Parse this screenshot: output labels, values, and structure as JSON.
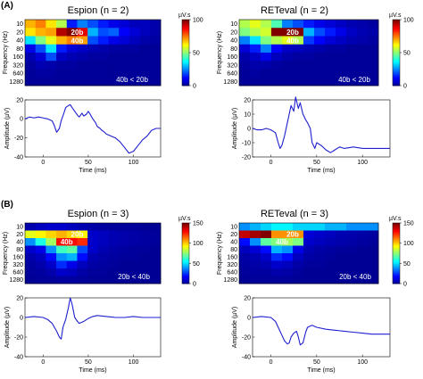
{
  "panel_labels": [
    "(A)",
    "(B)"
  ],
  "colormap": [
    "#00008f",
    "#0000ff",
    "#0080ff",
    "#00ffff",
    "#80ff80",
    "#ffff00",
    "#ff8000",
    "#ff0000",
    "#800000"
  ],
  "chart_data": [
    {
      "type": "heatmap",
      "title": "Espion (n = 2)",
      "ylabel": "Frequency (Hz)",
      "y_categories": [
        "10",
        "20",
        "40",
        "80",
        "160",
        "320",
        "640",
        "1280"
      ],
      "colorbar": {
        "label": "µV.s",
        "range": [
          0,
          100
        ],
        "ticks": [
          0,
          50,
          100
        ]
      },
      "block_labels": [
        "20b",
        "40b"
      ],
      "annotation": "40b < 20b",
      "values": [
        [
          70,
          75,
          65,
          55,
          15,
          25,
          20,
          15,
          10,
          8,
          5,
          5,
          3
        ],
        [
          65,
          70,
          72,
          95,
          100,
          90,
          30,
          20,
          22,
          12,
          8,
          5,
          3
        ],
        [
          35,
          50,
          60,
          70,
          75,
          72,
          20,
          15,
          10,
          8,
          5,
          3,
          2
        ],
        [
          10,
          20,
          35,
          15,
          8,
          6,
          4,
          3,
          2,
          2,
          2,
          1,
          1
        ],
        [
          4,
          8,
          20,
          6,
          4,
          3,
          2,
          2,
          1,
          1,
          1,
          1,
          1
        ],
        [
          2,
          4,
          3,
          2,
          2,
          1,
          1,
          1,
          1,
          1,
          1,
          1,
          1
        ],
        [
          1,
          2,
          2,
          1,
          1,
          1,
          1,
          1,
          1,
          1,
          1,
          1,
          1
        ],
        [
          1,
          1,
          1,
          1,
          1,
          1,
          1,
          1,
          1,
          1,
          1,
          1,
          1
        ]
      ]
    },
    {
      "type": "heatmap",
      "title": "RETeval (n = 2)",
      "ylabel": "Frequency (Hz)",
      "y_categories": [
        "10",
        "20",
        "40",
        "80",
        "160",
        "320",
        "640",
        "1280"
      ],
      "colorbar": {
        "label": "µV.s",
        "range": [
          0,
          100
        ],
        "ticks": [
          0,
          50,
          100
        ]
      },
      "block_labels": [
        "20b",
        "40b"
      ],
      "annotation": "40b < 20b",
      "values": [
        [
          55,
          60,
          55,
          45,
          25,
          20,
          15,
          10,
          8,
          6,
          4,
          3,
          2
        ],
        [
          50,
          55,
          58,
          100,
          100,
          100,
          30,
          20,
          15,
          10,
          6,
          4,
          3
        ],
        [
          25,
          35,
          50,
          55,
          60,
          55,
          18,
          12,
          8,
          6,
          4,
          3,
          2
        ],
        [
          8,
          15,
          25,
          12,
          6,
          5,
          4,
          3,
          2,
          2,
          1,
          1,
          1
        ],
        [
          3,
          6,
          10,
          5,
          3,
          2,
          2,
          1,
          1,
          1,
          1,
          1,
          1
        ],
        [
          2,
          3,
          3,
          2,
          1,
          1,
          1,
          1,
          1,
          1,
          1,
          1,
          1
        ],
        [
          1,
          2,
          1,
          1,
          1,
          1,
          1,
          1,
          1,
          1,
          1,
          1,
          1
        ],
        [
          1,
          1,
          1,
          1,
          1,
          1,
          1,
          1,
          1,
          1,
          1,
          1,
          1
        ]
      ]
    },
    {
      "type": "line",
      "xlabel": "Time (ms)",
      "ylabel": "Amplitude (µV)",
      "xlim": [
        -20,
        130
      ],
      "ylim": [
        -40,
        20
      ],
      "xticks": [
        0,
        50,
        100
      ],
      "yticks": [
        -40,
        -20,
        0,
        20
      ],
      "series": [
        {
          "x": [
            -20,
            -15,
            -10,
            -5,
            0,
            5,
            10,
            12,
            15,
            18,
            20,
            23,
            25,
            28,
            30,
            32,
            35,
            38,
            40,
            43,
            45,
            48,
            50,
            52,
            55,
            58,
            60,
            63,
            65,
            68,
            70,
            75,
            80,
            85,
            90,
            95,
            100,
            105,
            110,
            115,
            120,
            125,
            130
          ],
          "y": [
            0,
            2,
            1,
            2,
            1,
            0,
            -2,
            -6,
            -14,
            -10,
            -2,
            6,
            12,
            14,
            15,
            12,
            8,
            4,
            2,
            6,
            3,
            5,
            8,
            5,
            0,
            -4,
            -8,
            -10,
            -12,
            -14,
            -16,
            -18,
            -20,
            -24,
            -30,
            -36,
            -34,
            -28,
            -22,
            -18,
            -12,
            -10,
            -10
          ]
        }
      ]
    },
    {
      "type": "line",
      "xlabel": "Time (ms)",
      "ylabel": "Amplitude (µV)",
      "xlim": [
        -20,
        130
      ],
      "ylim": [
        -20,
        20
      ],
      "xticks": [
        0,
        50,
        100
      ],
      "yticks": [
        -20,
        -10,
        0,
        10,
        20
      ],
      "series": [
        {
          "x": [
            -20,
            -15,
            -10,
            -5,
            0,
            5,
            8,
            10,
            12,
            15,
            18,
            20,
            22,
            25,
            27,
            30,
            32,
            35,
            38,
            40,
            43,
            45,
            48,
            50,
            55,
            60,
            65,
            70,
            75,
            80,
            90,
            100,
            110,
            120,
            130
          ],
          "y": [
            0,
            -1,
            -1,
            0,
            -1,
            -3,
            -10,
            -14,
            -12,
            -5,
            4,
            10,
            16,
            12,
            22,
            14,
            18,
            10,
            6,
            4,
            0,
            -10,
            -14,
            -10,
            -12,
            -15,
            -17,
            -15,
            -13,
            -14,
            -13,
            -14,
            -14,
            -14,
            -14
          ]
        }
      ]
    },
    {
      "type": "heatmap",
      "title": "Espion (n = 3)",
      "ylabel": "Frequency (Hz)",
      "y_categories": [
        "10",
        "20",
        "40",
        "80",
        "160",
        "320",
        "640",
        "1280"
      ],
      "colorbar": {
        "label": "µV.s",
        "range": [
          0,
          150
        ],
        "ticks": [
          0,
          50,
          100,
          150
        ]
      },
      "block_labels": [
        "20b",
        "40b"
      ],
      "annotation": "20b < 40b",
      "values": [
        [
          5,
          8,
          10,
          10,
          8,
          6,
          4,
          3,
          2,
          2,
          2,
          1,
          1
        ],
        [
          90,
          95,
          100,
          105,
          100,
          95,
          10,
          8,
          6,
          5,
          4,
          3,
          2
        ],
        [
          40,
          60,
          80,
          130,
          130,
          125,
          10,
          8,
          6,
          5,
          4,
          3,
          2
        ],
        [
          10,
          15,
          40,
          65,
          70,
          30,
          10,
          6,
          4,
          3,
          2,
          2,
          1
        ],
        [
          5,
          8,
          20,
          40,
          45,
          20,
          6,
          4,
          3,
          2,
          2,
          1,
          1
        ],
        [
          3,
          5,
          10,
          25,
          15,
          8,
          4,
          3,
          2,
          1,
          1,
          1,
          1
        ],
        [
          2,
          3,
          5,
          10,
          8,
          4,
          2,
          2,
          1,
          1,
          1,
          1,
          1
        ],
        [
          1,
          2,
          2,
          3,
          3,
          2,
          1,
          1,
          1,
          1,
          1,
          1,
          1
        ]
      ]
    },
    {
      "type": "heatmap",
      "title": "RETeval (n = 3)",
      "ylabel": "Frequency (Hz)",
      "y_categories": [
        "10",
        "20",
        "40",
        "80",
        "160",
        "320",
        "640",
        "1280"
      ],
      "colorbar": {
        "label": "µV.s",
        "range": [
          0,
          150
        ],
        "ticks": [
          0,
          50,
          100,
          150
        ]
      },
      "block_labels": [
        "20b",
        "40b"
      ],
      "annotation": "20b < 40b",
      "values": [
        [
          40,
          45,
          50,
          55,
          55,
          50,
          50,
          50,
          45,
          45,
          40,
          40,
          40
        ],
        [
          140,
          145,
          150,
          110,
          110,
          110,
          12,
          10,
          8,
          6,
          5,
          4,
          3
        ],
        [
          20,
          40,
          70,
          75,
          80,
          75,
          10,
          8,
          6,
          5,
          4,
          3,
          2
        ],
        [
          8,
          12,
          20,
          45,
          40,
          15,
          6,
          4,
          3,
          2,
          2,
          1,
          1
        ],
        [
          4,
          6,
          10,
          25,
          20,
          8,
          4,
          3,
          2,
          1,
          1,
          1,
          1
        ],
        [
          3,
          4,
          6,
          10,
          8,
          4,
          2,
          2,
          1,
          1,
          1,
          1,
          1
        ],
        [
          2,
          3,
          3,
          5,
          4,
          2,
          1,
          1,
          1,
          1,
          1,
          1,
          1
        ],
        [
          1,
          2,
          2,
          2,
          2,
          1,
          1,
          1,
          1,
          1,
          1,
          1,
          1
        ]
      ]
    },
    {
      "type": "line",
      "xlabel": "Time (ms)",
      "ylabel": "Amplitude (µV)",
      "xlim": [
        -20,
        130
      ],
      "ylim": [
        -40,
        20
      ],
      "xticks": [
        0,
        50,
        100
      ],
      "yticks": [
        -40,
        -20,
        0,
        20
      ],
      "series": [
        {
          "x": [
            -20,
            -10,
            0,
            5,
            10,
            15,
            18,
            20,
            22,
            25,
            28,
            30,
            32,
            35,
            38,
            40,
            45,
            50,
            55,
            60,
            70,
            80,
            90,
            100,
            110,
            120,
            130
          ],
          "y": [
            0,
            1,
            0,
            -2,
            -6,
            -14,
            -20,
            -22,
            -10,
            -2,
            10,
            20,
            14,
            0,
            -4,
            -6,
            -4,
            -1,
            1,
            2,
            1,
            0,
            0,
            1,
            0,
            0,
            0
          ]
        }
      ]
    },
    {
      "type": "line",
      "xlabel": "Time (ms)",
      "ylabel": "Amplitude (µV)",
      "xlim": [
        -20,
        130
      ],
      "ylim": [
        -40,
        20
      ],
      "xticks": [
        0,
        50,
        100
      ],
      "yticks": [
        -40,
        -20,
        0,
        20
      ],
      "series": [
        {
          "x": [
            -20,
            -10,
            0,
            5,
            8,
            10,
            12,
            15,
            18,
            20,
            22,
            25,
            28,
            30,
            32,
            35,
            38,
            40,
            45,
            50,
            60,
            70,
            80,
            90,
            100,
            110,
            120,
            130
          ],
          "y": [
            0,
            1,
            0,
            -4,
            -10,
            -14,
            -18,
            -24,
            -27,
            -26,
            -20,
            -16,
            -14,
            -20,
            -28,
            -26,
            -15,
            -10,
            -8,
            -10,
            -12,
            -13,
            -14,
            -15,
            -16,
            -17,
            -17,
            -17
          ]
        }
      ]
    }
  ]
}
